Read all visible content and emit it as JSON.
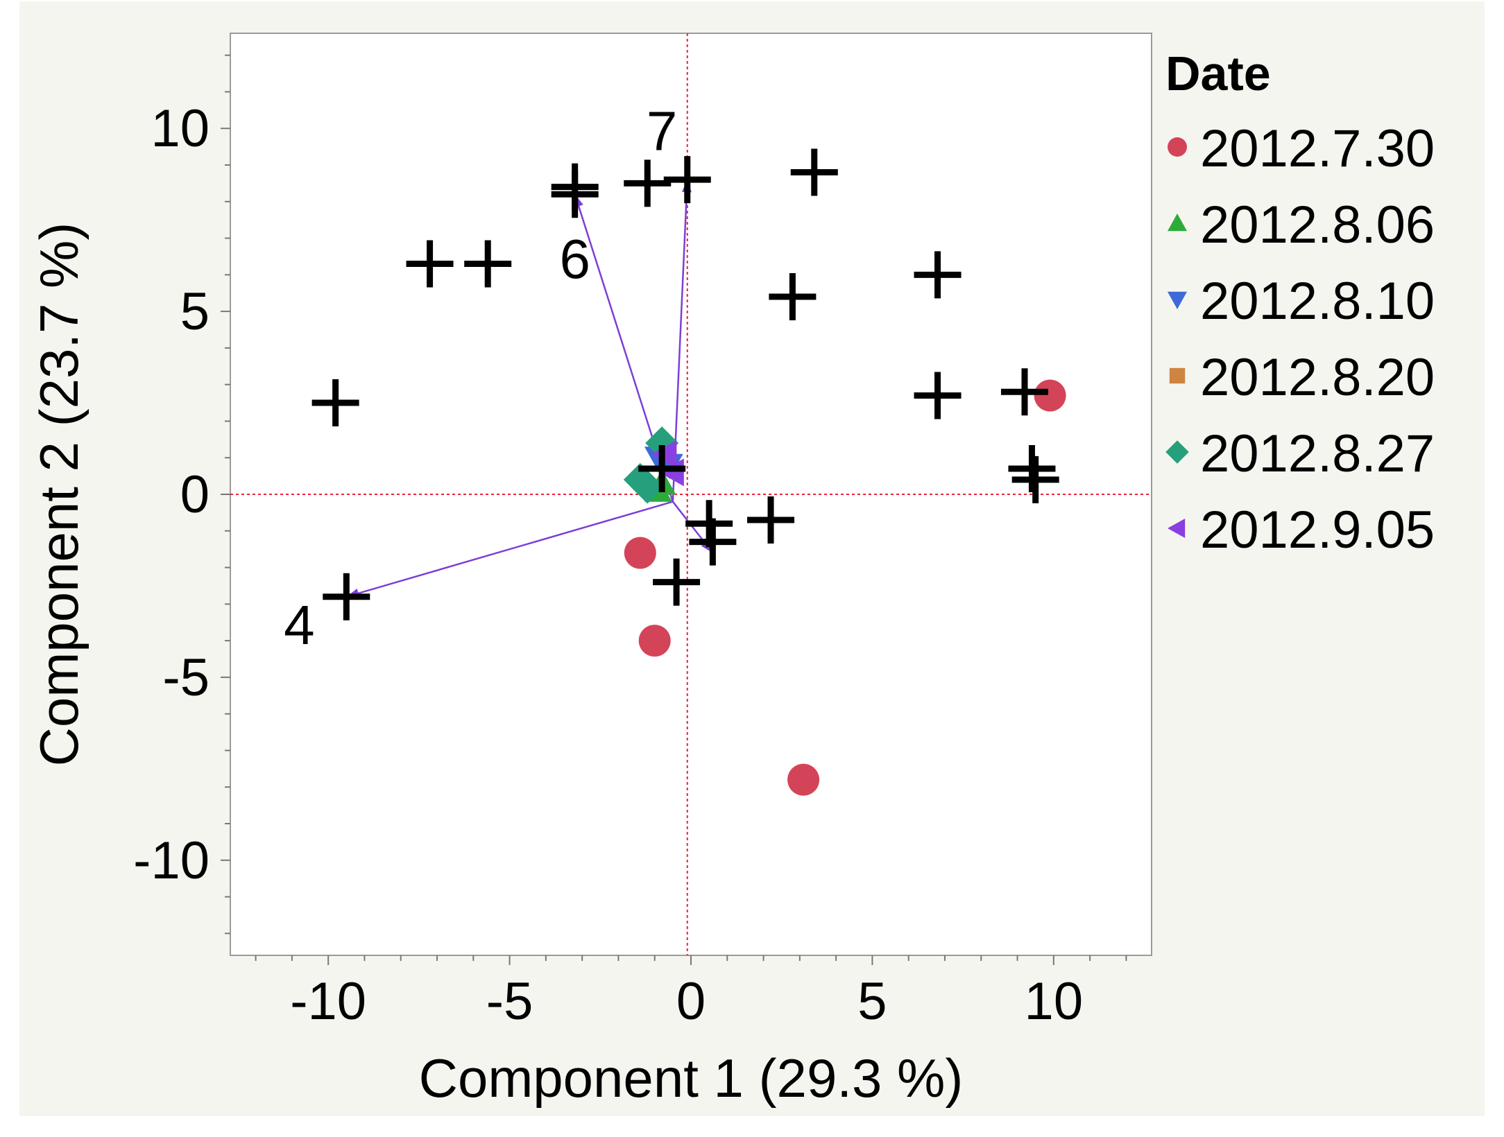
{
  "chart_data": {
    "type": "scatter",
    "title": "",
    "xlabel": "Component 1  (29.3 %)",
    "ylabel": "Component 2  (23.7 %)",
    "xlim": [
      -12.7,
      12.7
    ],
    "ylim": [
      -12.6,
      12.6
    ],
    "x_ticks": [
      -10,
      -5,
      0,
      5,
      10
    ],
    "y_ticks": [
      10,
      5,
      0,
      -5,
      -10
    ],
    "grid": false,
    "reference_lines": {
      "x": -0.1,
      "y": 0,
      "color": "#e8223a",
      "style": "dotted"
    },
    "legend": {
      "title": "Date",
      "position": "right",
      "entries": [
        {
          "label": "2012.7.30",
          "marker": "circle",
          "color": "#d44458"
        },
        {
          "label": "2012.8.06",
          "marker": "triangle-up",
          "color": "#2cab3a"
        },
        {
          "label": "2012.8.10",
          "marker": "triangle-down",
          "color": "#3f69d8"
        },
        {
          "label": "2012.8.20",
          "marker": "square",
          "color": "#cf8442"
        },
        {
          "label": "2012.8.27",
          "marker": "diamond",
          "color": "#26a07c"
        },
        {
          "label": "2012.9.05",
          "marker": "triangle-left",
          "color": "#8a3fe0"
        }
      ]
    },
    "series": [
      {
        "name": "2012.7.30",
        "marker": "circle",
        "color": "#d44458",
        "points": [
          [
            9.9,
            2.7
          ],
          [
            -1.4,
            -1.6
          ],
          [
            -1.0,
            -4.0
          ],
          [
            3.1,
            -7.8
          ]
        ]
      },
      {
        "name": "2012.8.06",
        "marker": "triangle-up",
        "color": "#2cab3a",
        "points": [
          [
            -0.9,
            0.1
          ],
          [
            -0.8,
            0.3
          ]
        ]
      },
      {
        "name": "2012.8.10",
        "marker": "triangle-down",
        "color": "#3f69d8",
        "points": [
          [
            -0.9,
            1.0
          ],
          [
            -0.6,
            0.8
          ]
        ]
      },
      {
        "name": "2012.8.27",
        "marker": "diamond",
        "color": "#26a07c",
        "points": [
          [
            -0.8,
            1.4
          ],
          [
            -1.4,
            0.4
          ],
          [
            -1.2,
            0.2
          ]
        ]
      },
      {
        "name": "2012.9.05",
        "marker": "triangle-left",
        "color": "#8a3fe0",
        "points": [
          [
            -0.7,
            1.1
          ],
          [
            -0.5,
            0.6
          ]
        ]
      }
    ],
    "loadings": {
      "marker": "plus",
      "points": [
        [
          -3.2,
          8.4
        ],
        [
          -3.2,
          8.2
        ],
        [
          -1.2,
          8.5
        ],
        [
          -0.1,
          8.6
        ],
        [
          3.4,
          8.8
        ],
        [
          -7.2,
          6.3
        ],
        [
          -5.6,
          6.3
        ],
        [
          2.8,
          5.4
        ],
        [
          6.8,
          6.0
        ],
        [
          -9.8,
          2.5
        ],
        [
          6.8,
          2.7
        ],
        [
          9.2,
          2.8
        ],
        [
          9.4,
          0.7
        ],
        [
          9.5,
          0.4
        ],
        [
          -0.8,
          0.7
        ],
        [
          0.5,
          -0.8
        ],
        [
          2.2,
          -0.7
        ],
        [
          0.6,
          -1.3
        ],
        [
          -0.4,
          -2.4
        ],
        [
          -9.5,
          -2.8
        ]
      ]
    },
    "arrows": {
      "color": "#7b3fd6",
      "origin": [
        -0.5,
        -0.2
      ],
      "tips": [
        [
          -3.2,
          8.2
        ],
        [
          -0.1,
          8.6
        ],
        [
          -9.5,
          -2.8
        ],
        [
          0.6,
          -1.6
        ]
      ]
    },
    "annotations": [
      {
        "text": "7",
        "x": -0.8,
        "y": 9.9
      },
      {
        "text": "6",
        "x": -3.2,
        "y": 6.4
      },
      {
        "text": "4",
        "x": -10.8,
        "y": -3.6
      }
    ]
  }
}
